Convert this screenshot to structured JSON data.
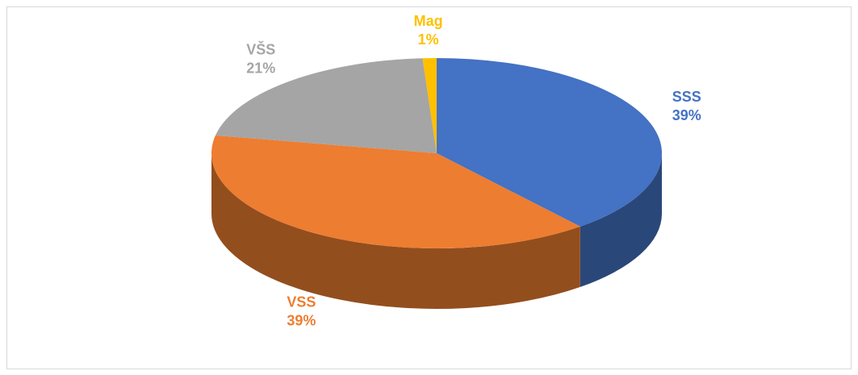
{
  "chart_data": {
    "type": "pie",
    "categories": [
      "SSS",
      "VSS",
      "VŠS",
      "Mag"
    ],
    "values": [
      39,
      39,
      21,
      1
    ],
    "value_labels": [
      "39%",
      "39%",
      "21%",
      "1%"
    ],
    "colors": [
      "#4472c4",
      "#ed7d31",
      "#a5a5a5",
      "#ffc000"
    ]
  }
}
